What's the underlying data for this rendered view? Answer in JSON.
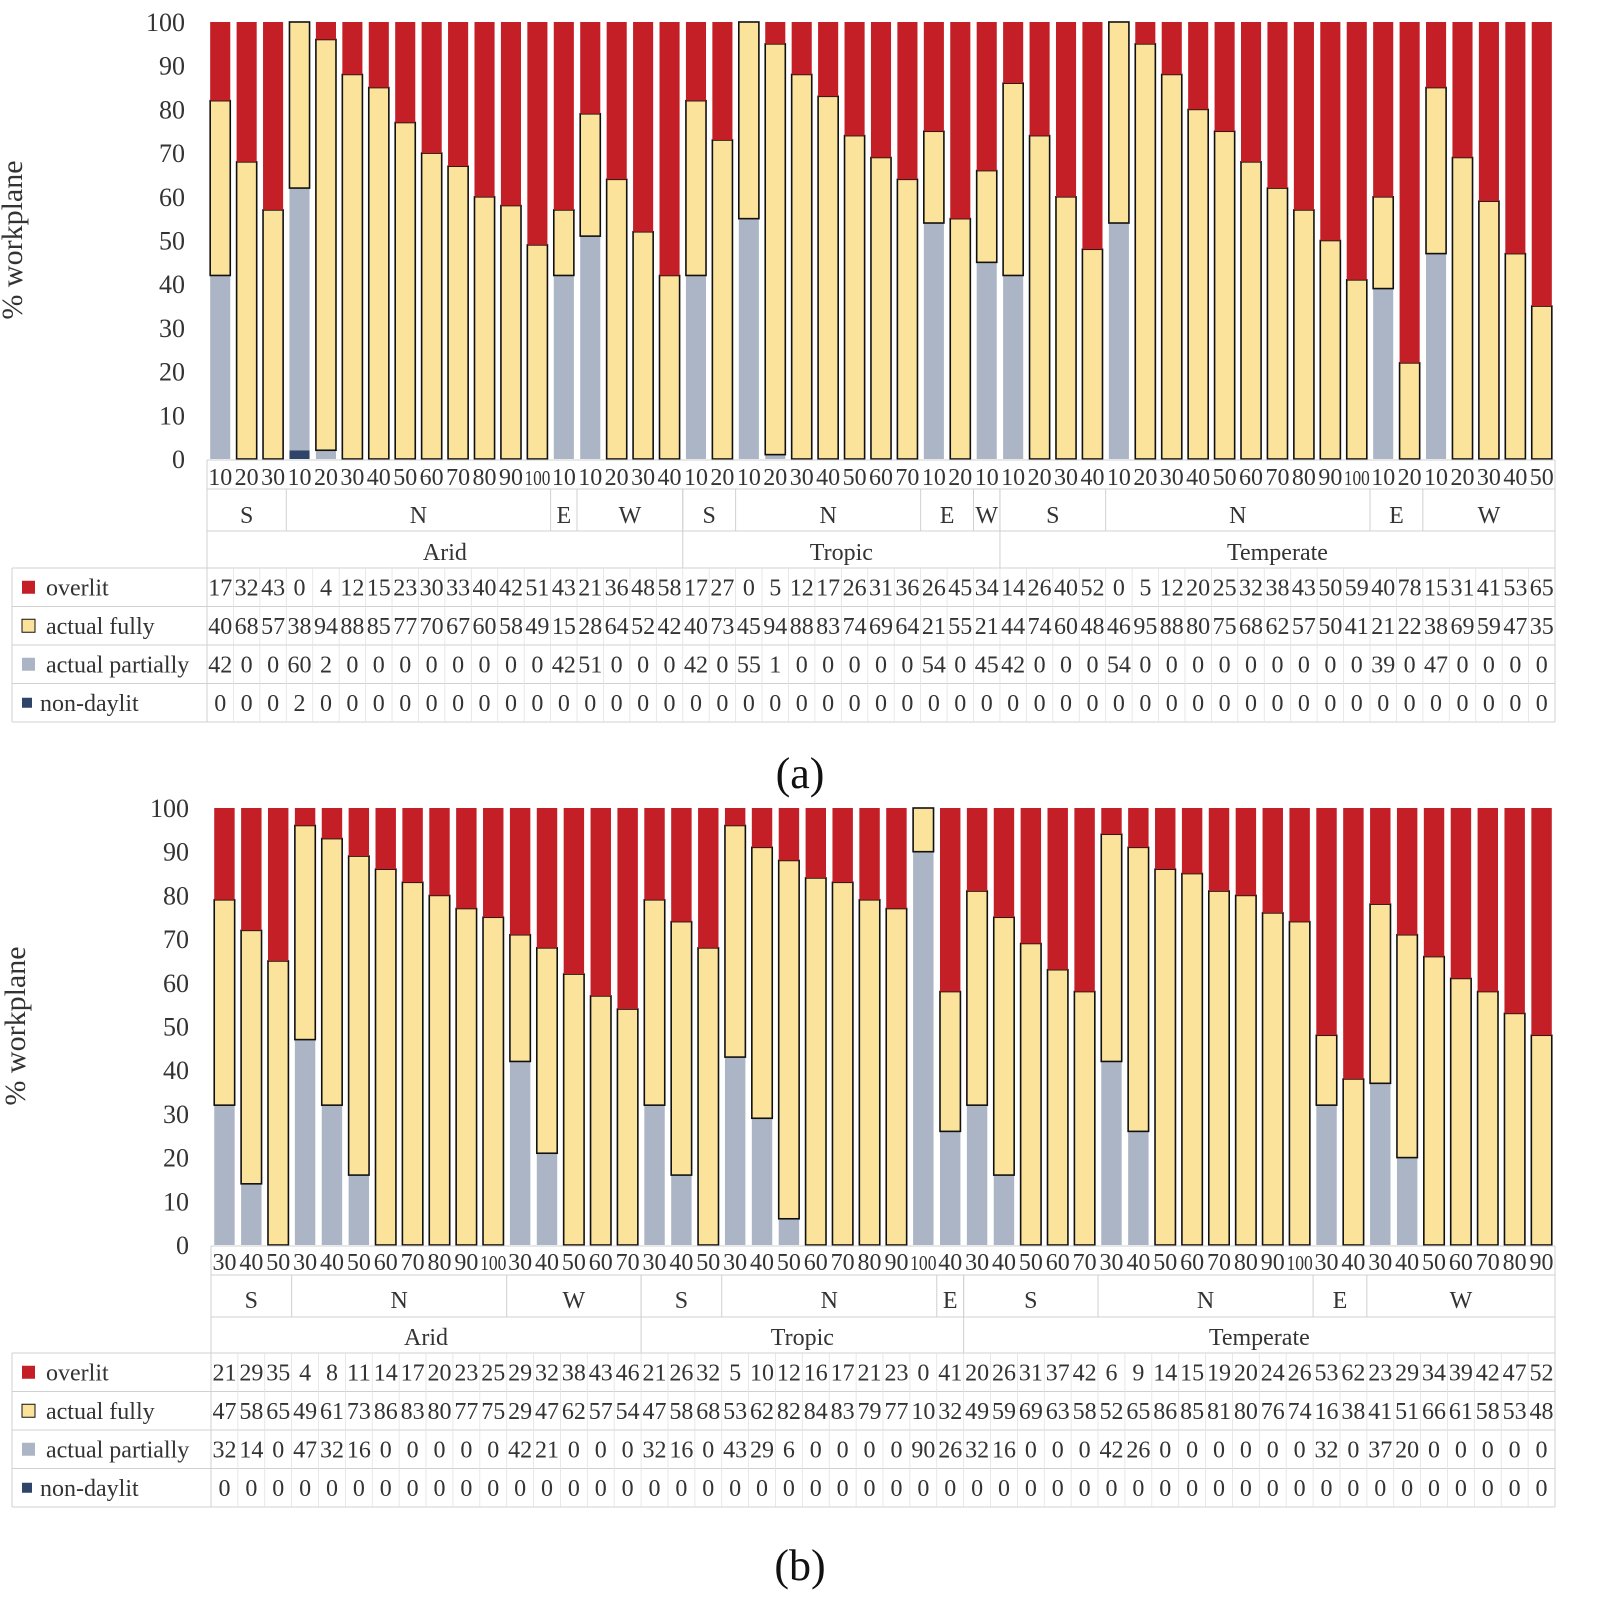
{
  "colors": {
    "overlit": "#c41e26",
    "actual_fully": "#fbe39b",
    "actual_partially": "#abb5c5",
    "non_daylit": "#2e4469",
    "grid": "#d0d0d0",
    "bar_outline": "#111111"
  },
  "chart_data": [
    {
      "type": "bar",
      "stacked": true,
      "panel_label": "(a)",
      "ylabel": "% workplane",
      "ylim": [
        0,
        100
      ],
      "yticks": [
        0,
        10,
        20,
        30,
        40,
        50,
        60,
        70,
        80,
        90,
        100
      ],
      "categories": [
        "10",
        "20",
        "30",
        "10",
        "20",
        "30",
        "40",
        "50",
        "60",
        "70",
        "80",
        "90",
        "100",
        "10",
        "10",
        "20",
        "30",
        "40",
        "10",
        "20",
        "10",
        "20",
        "30",
        "40",
        "50",
        "60",
        "70",
        "10",
        "20",
        "10",
        "10",
        "20",
        "30",
        "40",
        "10",
        "20",
        "30",
        "40",
        "50",
        "60",
        "70",
        "80",
        "90",
        "100",
        "10",
        "20",
        "10",
        "20",
        "30",
        "40",
        "50"
      ],
      "orientation_groups": [
        {
          "label": "S",
          "count": 3
        },
        {
          "label": "N",
          "count": 10
        },
        {
          "label": "E",
          "count": 1
        },
        {
          "label": "W",
          "count": 4
        },
        {
          "label": "S",
          "count": 2
        },
        {
          "label": "N",
          "count": 7
        },
        {
          "label": "E",
          "count": 2
        },
        {
          "label": "W",
          "count": 1
        },
        {
          "label": "S",
          "count": 4
        },
        {
          "label": "N",
          "count": 10
        },
        {
          "label": "E",
          "count": 2
        },
        {
          "label": "W",
          "count": 5
        }
      ],
      "climate_groups": [
        {
          "label": "Arid",
          "count": 18
        },
        {
          "label": "Tropic",
          "count": 12
        },
        {
          "label": "Temperate",
          "count": 21
        }
      ],
      "series": [
        {
          "name": "overlit",
          "key": "overlit",
          "values": [
            17,
            32,
            43,
            0,
            4,
            12,
            15,
            23,
            30,
            33,
            40,
            42,
            51,
            43,
            21,
            36,
            48,
            58,
            17,
            27,
            0,
            5,
            12,
            17,
            26,
            31,
            36,
            26,
            45,
            34,
            14,
            26,
            40,
            52,
            0,
            5,
            12,
            20,
            25,
            32,
            38,
            43,
            50,
            59,
            40,
            78,
            15,
            31,
            41,
            53,
            65
          ]
        },
        {
          "name": "actual fully",
          "key": "actual_fully",
          "values": [
            40,
            68,
            57,
            38,
            94,
            88,
            85,
            77,
            70,
            67,
            60,
            58,
            49,
            15,
            28,
            64,
            52,
            42,
            40,
            73,
            45,
            94,
            88,
            83,
            74,
            69,
            64,
            21,
            55,
            21,
            44,
            74,
            60,
            48,
            46,
            95,
            88,
            80,
            75,
            68,
            62,
            57,
            50,
            41,
            21,
            22,
            38,
            69,
            59,
            47,
            35
          ]
        },
        {
          "name": "actual partially",
          "key": "actual_partially",
          "values": [
            42,
            0,
            0,
            60,
            2,
            0,
            0,
            0,
            0,
            0,
            0,
            0,
            0,
            42,
            51,
            0,
            0,
            0,
            42,
            0,
            55,
            1,
            0,
            0,
            0,
            0,
            0,
            54,
            0,
            45,
            42,
            0,
            0,
            0,
            54,
            0,
            0,
            0,
            0,
            0,
            0,
            0,
            0,
            0,
            39,
            0,
            47,
            0,
            0,
            0,
            0
          ]
        },
        {
          "name": "non-daylit",
          "key": "non_daylit",
          "values": [
            0,
            0,
            0,
            2,
            0,
            0,
            0,
            0,
            0,
            0,
            0,
            0,
            0,
            0,
            0,
            0,
            0,
            0,
            0,
            0,
            0,
            0,
            0,
            0,
            0,
            0,
            0,
            0,
            0,
            0,
            0,
            0,
            0,
            0,
            0,
            0,
            0,
            0,
            0,
            0,
            0,
            0,
            0,
            0,
            0,
            0,
            0,
            0,
            0,
            0,
            0
          ]
        }
      ],
      "legend": "table-left"
    },
    {
      "type": "bar",
      "stacked": true,
      "panel_label": "(b)",
      "ylabel": "% workplane",
      "ylim": [
        0,
        100
      ],
      "yticks": [
        0,
        10,
        20,
        30,
        40,
        50,
        60,
        70,
        80,
        90,
        100
      ],
      "categories": [
        "30",
        "40",
        "50",
        "30",
        "40",
        "50",
        "60",
        "70",
        "80",
        "90",
        "100",
        "30",
        "40",
        "50",
        "60",
        "70",
        "30",
        "40",
        "50",
        "30",
        "40",
        "50",
        "60",
        "70",
        "80",
        "90",
        "100",
        "40",
        "30",
        "40",
        "50",
        "60",
        "70",
        "30",
        "40",
        "50",
        "60",
        "70",
        "80",
        "90",
        "100",
        "30",
        "40",
        "30",
        "40",
        "50",
        "60",
        "70",
        "80",
        "90"
      ],
      "orientation_groups": [
        {
          "label": "S",
          "count": 3
        },
        {
          "label": "N",
          "count": 8
        },
        {
          "label": "W",
          "count": 5
        },
        {
          "label": "S",
          "count": 3
        },
        {
          "label": "N",
          "count": 8
        },
        {
          "label": "E",
          "count": 1
        },
        {
          "label": "S",
          "count": 5
        },
        {
          "label": "N",
          "count": 8
        },
        {
          "label": "E",
          "count": 2
        },
        {
          "label": "W",
          "count": 7
        }
      ],
      "climate_groups": [
        {
          "label": "Arid",
          "count": 16
        },
        {
          "label": "Tropic",
          "count": 12
        },
        {
          "label": "Temperate",
          "count": 22
        }
      ],
      "series": [
        {
          "name": "overlit",
          "key": "overlit",
          "values": [
            21,
            29,
            35,
            4,
            8,
            11,
            14,
            17,
            20,
            23,
            25,
            29,
            32,
            38,
            43,
            46,
            21,
            26,
            32,
            5,
            10,
            12,
            16,
            17,
            21,
            23,
            0,
            41,
            20,
            26,
            31,
            37,
            42,
            6,
            9,
            14,
            15,
            19,
            20,
            24,
            26,
            53,
            62,
            23,
            29,
            34,
            39,
            42,
            47,
            52
          ]
        },
        {
          "name": "actual fully",
          "key": "actual_fully",
          "values": [
            47,
            58,
            65,
            49,
            61,
            73,
            86,
            83,
            80,
            77,
            75,
            29,
            47,
            62,
            57,
            54,
            47,
            58,
            68,
            53,
            62,
            82,
            84,
            83,
            79,
            77,
            10,
            32,
            49,
            59,
            69,
            63,
            58,
            52,
            65,
            86,
            85,
            81,
            80,
            76,
            74,
            16,
            38,
            41,
            51,
            66,
            61,
            58,
            53,
            48
          ]
        },
        {
          "name": "actual partially",
          "key": "actual_partially",
          "values": [
            32,
            14,
            0,
            47,
            32,
            16,
            0,
            0,
            0,
            0,
            0,
            42,
            21,
            0,
            0,
            0,
            32,
            16,
            0,
            43,
            29,
            6,
            0,
            0,
            0,
            0,
            90,
            26,
            32,
            16,
            0,
            0,
            0,
            42,
            26,
            0,
            0,
            0,
            0,
            0,
            0,
            32,
            0,
            37,
            20,
            0,
            0,
            0,
            0,
            0
          ]
        },
        {
          "name": "non-daylit",
          "key": "non_daylit",
          "values": [
            0,
            0,
            0,
            0,
            0,
            0,
            0,
            0,
            0,
            0,
            0,
            0,
            0,
            0,
            0,
            0,
            0,
            0,
            0,
            0,
            0,
            0,
            0,
            0,
            0,
            0,
            0,
            0,
            0,
            0,
            0,
            0,
            0,
            0,
            0,
            0,
            0,
            0,
            0,
            0,
            0,
            0,
            0,
            0,
            0,
            0,
            0,
            0,
            0,
            0
          ]
        }
      ],
      "legend": "table-left"
    }
  ]
}
